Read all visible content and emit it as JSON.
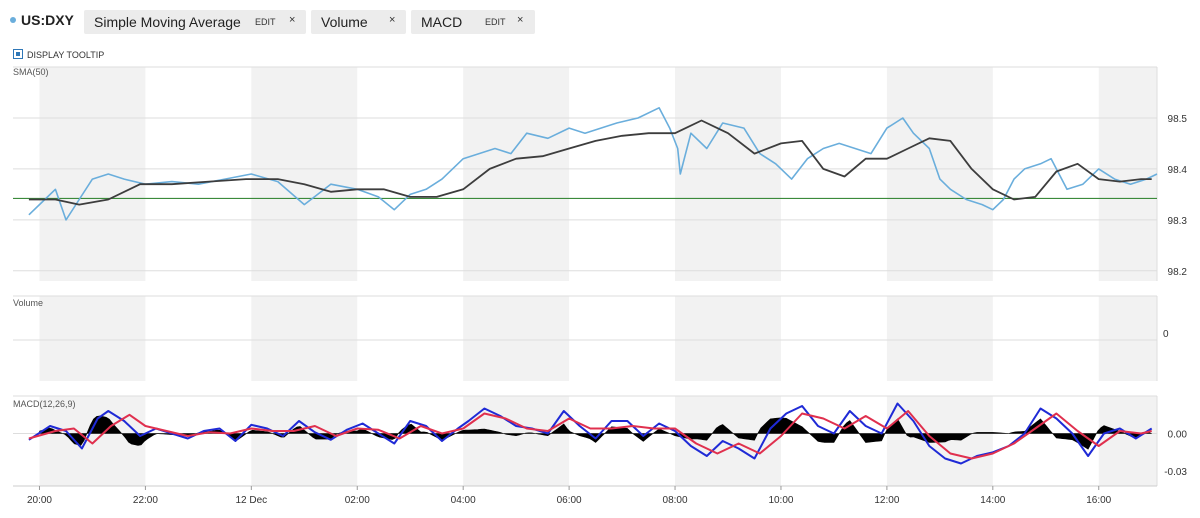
{
  "header": {
    "symbol": "US:DXY",
    "symbol_color": "#6aaedc",
    "chips": [
      {
        "label": "Simple Moving Average",
        "edit": "EDIT",
        "close": "×"
      },
      {
        "label": "Volume",
        "close": "×"
      },
      {
        "label": "MACD",
        "edit": "EDIT",
        "close": "×"
      }
    ],
    "tooltip_label": "DISPLAY TOOLTIP"
  },
  "colors": {
    "price": "#6aaedc",
    "sma": "#3d3d3d",
    "reference": "#3b8a3b",
    "macd": "#1f2ad6",
    "signal": "#e0304e",
    "histogram": "#000000",
    "band": "#f2f2f2",
    "grid": "#dddddd"
  },
  "chart_data": [
    {
      "type": "line",
      "panel": "price",
      "label": "SMA(50)",
      "y_tick_labels": [
        "98.5",
        "98.4",
        "98.3",
        "98.2"
      ],
      "y_tick_values": [
        98.5,
        98.4,
        98.3,
        98.2
      ],
      "ylim": [
        98.18,
        98.6
      ],
      "reference_line": 98.342,
      "x_ticks": [
        "20:00",
        "22:00",
        "12 Dec",
        "02:00",
        "04:00",
        "06:00",
        "08:00",
        "10:00",
        "12:00",
        "14:00",
        "16:00"
      ],
      "x_tick_hours": [
        20,
        22,
        24,
        26,
        28,
        30,
        32,
        34,
        36,
        38,
        40
      ],
      "xlim": [
        19.5,
        41.1
      ],
      "shaded_bands_hours": [
        [
          20,
          22
        ],
        [
          24,
          26
        ],
        [
          28,
          30
        ],
        [
          32,
          34
        ],
        [
          36,
          38
        ],
        [
          40,
          41.1
        ]
      ],
      "series": [
        {
          "role": "price",
          "x": [
            19.8,
            20.1,
            20.3,
            20.5,
            20.75,
            21.0,
            21.3,
            21.6,
            22.0,
            22.5,
            23.0,
            23.5,
            24.0,
            24.5,
            25.0,
            25.5,
            26.0,
            26.4,
            26.7,
            27.0,
            27.3,
            27.6,
            28.0,
            28.3,
            28.6,
            28.9,
            29.2,
            29.6,
            30.0,
            30.3,
            30.6,
            30.9,
            31.3,
            31.7,
            31.9,
            32.05,
            32.1,
            32.3,
            32.6,
            32.9,
            33.3,
            33.6,
            33.9,
            34.2,
            34.5,
            34.8,
            35.1,
            35.4,
            35.7,
            36.0,
            36.3,
            36.5,
            36.8,
            37.0,
            37.2,
            37.5,
            37.8,
            38.0,
            38.2,
            38.4,
            38.6,
            38.9,
            39.1,
            39.4,
            39.7,
            40.0,
            40.3,
            40.6,
            40.9,
            41.1
          ],
          "values": [
            98.31,
            98.34,
            98.36,
            98.3,
            98.34,
            98.38,
            98.39,
            98.38,
            98.37,
            98.375,
            98.37,
            98.38,
            98.39,
            98.375,
            98.33,
            98.37,
            98.36,
            98.345,
            98.32,
            98.35,
            98.36,
            98.38,
            98.42,
            98.43,
            98.44,
            98.43,
            98.47,
            98.46,
            98.48,
            98.47,
            98.48,
            98.49,
            98.5,
            98.52,
            98.48,
            98.44,
            98.39,
            98.47,
            98.44,
            98.49,
            98.48,
            98.43,
            98.41,
            98.38,
            98.42,
            98.44,
            98.45,
            98.44,
            98.43,
            98.48,
            98.5,
            98.47,
            98.44,
            98.38,
            98.36,
            98.34,
            98.33,
            98.32,
            98.34,
            98.38,
            98.4,
            98.41,
            98.42,
            98.36,
            98.37,
            98.4,
            98.38,
            98.37,
            98.38,
            98.39
          ]
        },
        {
          "role": "sma",
          "x": [
            19.8,
            20.3,
            20.75,
            21.3,
            21.9,
            22.5,
            23.2,
            23.9,
            24.5,
            25.0,
            25.5,
            26.0,
            26.5,
            27.0,
            27.5,
            28.0,
            28.5,
            29.0,
            29.5,
            30.0,
            30.5,
            31.0,
            31.5,
            32.0,
            32.5,
            33.0,
            33.5,
            34.0,
            34.4,
            34.8,
            35.2,
            35.6,
            36.0,
            36.4,
            36.8,
            37.2,
            37.6,
            38.0,
            38.4,
            38.8,
            39.2,
            39.6,
            40.0,
            40.4,
            40.8,
            41.0
          ],
          "values": [
            98.34,
            98.34,
            98.33,
            98.34,
            98.37,
            98.37,
            98.375,
            98.38,
            98.38,
            98.37,
            98.355,
            98.36,
            98.36,
            98.345,
            98.345,
            98.36,
            98.4,
            98.42,
            98.425,
            98.44,
            98.455,
            98.465,
            98.47,
            98.47,
            98.495,
            98.47,
            98.43,
            98.45,
            98.455,
            98.4,
            98.385,
            98.42,
            98.42,
            98.44,
            98.46,
            98.455,
            98.4,
            98.36,
            98.34,
            98.345,
            98.395,
            98.41,
            98.38,
            98.375,
            98.38,
            98.38
          ]
        }
      ]
    },
    {
      "type": "bar",
      "panel": "volume",
      "label": "Volume",
      "y_tick_labels": [
        "0"
      ],
      "values": []
    },
    {
      "type": "line",
      "panel": "macd",
      "label": "MACD(12,26,9)",
      "y_tick_labels": [
        "0.00",
        "-0.03"
      ],
      "y_tick_values": [
        0.0,
        -0.03
      ],
      "ylim": [
        -0.042,
        0.03
      ],
      "series": [
        {
          "role": "macd",
          "x": [
            19.8,
            20.2,
            20.5,
            20.8,
            21.1,
            21.3,
            21.6,
            21.9,
            22.2,
            22.5,
            22.8,
            23.1,
            23.4,
            23.7,
            24.0,
            24.3,
            24.6,
            24.9,
            25.2,
            25.5,
            25.8,
            26.1,
            26.4,
            26.7,
            27.0,
            27.3,
            27.6,
            27.9,
            28.1,
            28.4,
            28.7,
            29.0,
            29.3,
            29.6,
            29.9,
            30.2,
            30.5,
            30.8,
            31.1,
            31.4,
            31.7,
            32.0,
            32.3,
            32.6,
            32.9,
            33.2,
            33.5,
            33.8,
            34.1,
            34.4,
            34.7,
            35.0,
            35.3,
            35.6,
            35.9,
            36.2,
            36.5,
            36.8,
            37.1,
            37.4,
            37.7,
            38.0,
            38.3,
            38.6,
            38.9,
            39.2,
            39.5,
            39.8,
            40.1,
            40.4,
            40.7,
            41.0
          ],
          "values": [
            -0.005,
            0.006,
            0.002,
            -0.012,
            0.012,
            0.018,
            0.01,
            -0.002,
            0.004,
            0.0,
            -0.004,
            0.002,
            0.004,
            -0.006,
            0.007,
            0.004,
            -0.002,
            0.01,
            0.001,
            -0.005,
            0.003,
            0.008,
            0.0,
            -0.008,
            0.01,
            0.006,
            -0.006,
            0.004,
            0.01,
            0.02,
            0.014,
            0.006,
            0.004,
            0.0,
            0.018,
            0.006,
            -0.004,
            0.01,
            0.01,
            -0.002,
            0.008,
            0.002,
            -0.01,
            -0.018,
            -0.006,
            -0.012,
            -0.02,
            0.004,
            0.016,
            0.022,
            0.006,
            0.0,
            0.018,
            0.006,
            0.0,
            0.024,
            0.01,
            -0.01,
            -0.02,
            -0.024,
            -0.018,
            -0.015,
            -0.01,
            0.0,
            0.02,
            0.012,
            0.0,
            -0.018,
            0.0,
            0.004,
            -0.004,
            0.004
          ]
        },
        {
          "role": "signal",
          "x": [
            19.8,
            20.3,
            20.65,
            21.0,
            21.35,
            21.7,
            22.0,
            22.4,
            22.8,
            23.2,
            23.6,
            24.0,
            24.4,
            24.8,
            25.2,
            25.6,
            26.0,
            26.4,
            26.8,
            27.2,
            27.6,
            28.0,
            28.4,
            28.8,
            29.2,
            29.6,
            30.0,
            30.4,
            30.8,
            31.2,
            31.6,
            32.0,
            32.4,
            32.8,
            33.2,
            33.6,
            34.0,
            34.4,
            34.8,
            35.2,
            35.6,
            36.0,
            36.4,
            36.8,
            37.2,
            37.6,
            38.0,
            38.4,
            38.8,
            39.2,
            39.6,
            40.0,
            40.4,
            40.8,
            41.0
          ],
          "values": [
            -0.004,
            0.002,
            0.004,
            -0.008,
            0.006,
            0.015,
            0.006,
            0.002,
            -0.002,
            0.001,
            0.0,
            0.004,
            0.002,
            0.002,
            0.006,
            -0.002,
            0.004,
            0.003,
            -0.004,
            0.006,
            0.0,
            0.004,
            0.016,
            0.012,
            0.004,
            0.002,
            0.012,
            0.004,
            0.004,
            0.006,
            0.004,
            0.004,
            -0.008,
            -0.016,
            -0.008,
            -0.016,
            -0.002,
            0.016,
            0.012,
            0.004,
            0.014,
            0.004,
            0.018,
            -0.002,
            -0.016,
            -0.02,
            -0.016,
            -0.008,
            0.004,
            0.016,
            0.002,
            -0.01,
            0.002,
            0.0,
            0.002
          ]
        }
      ]
    }
  ]
}
